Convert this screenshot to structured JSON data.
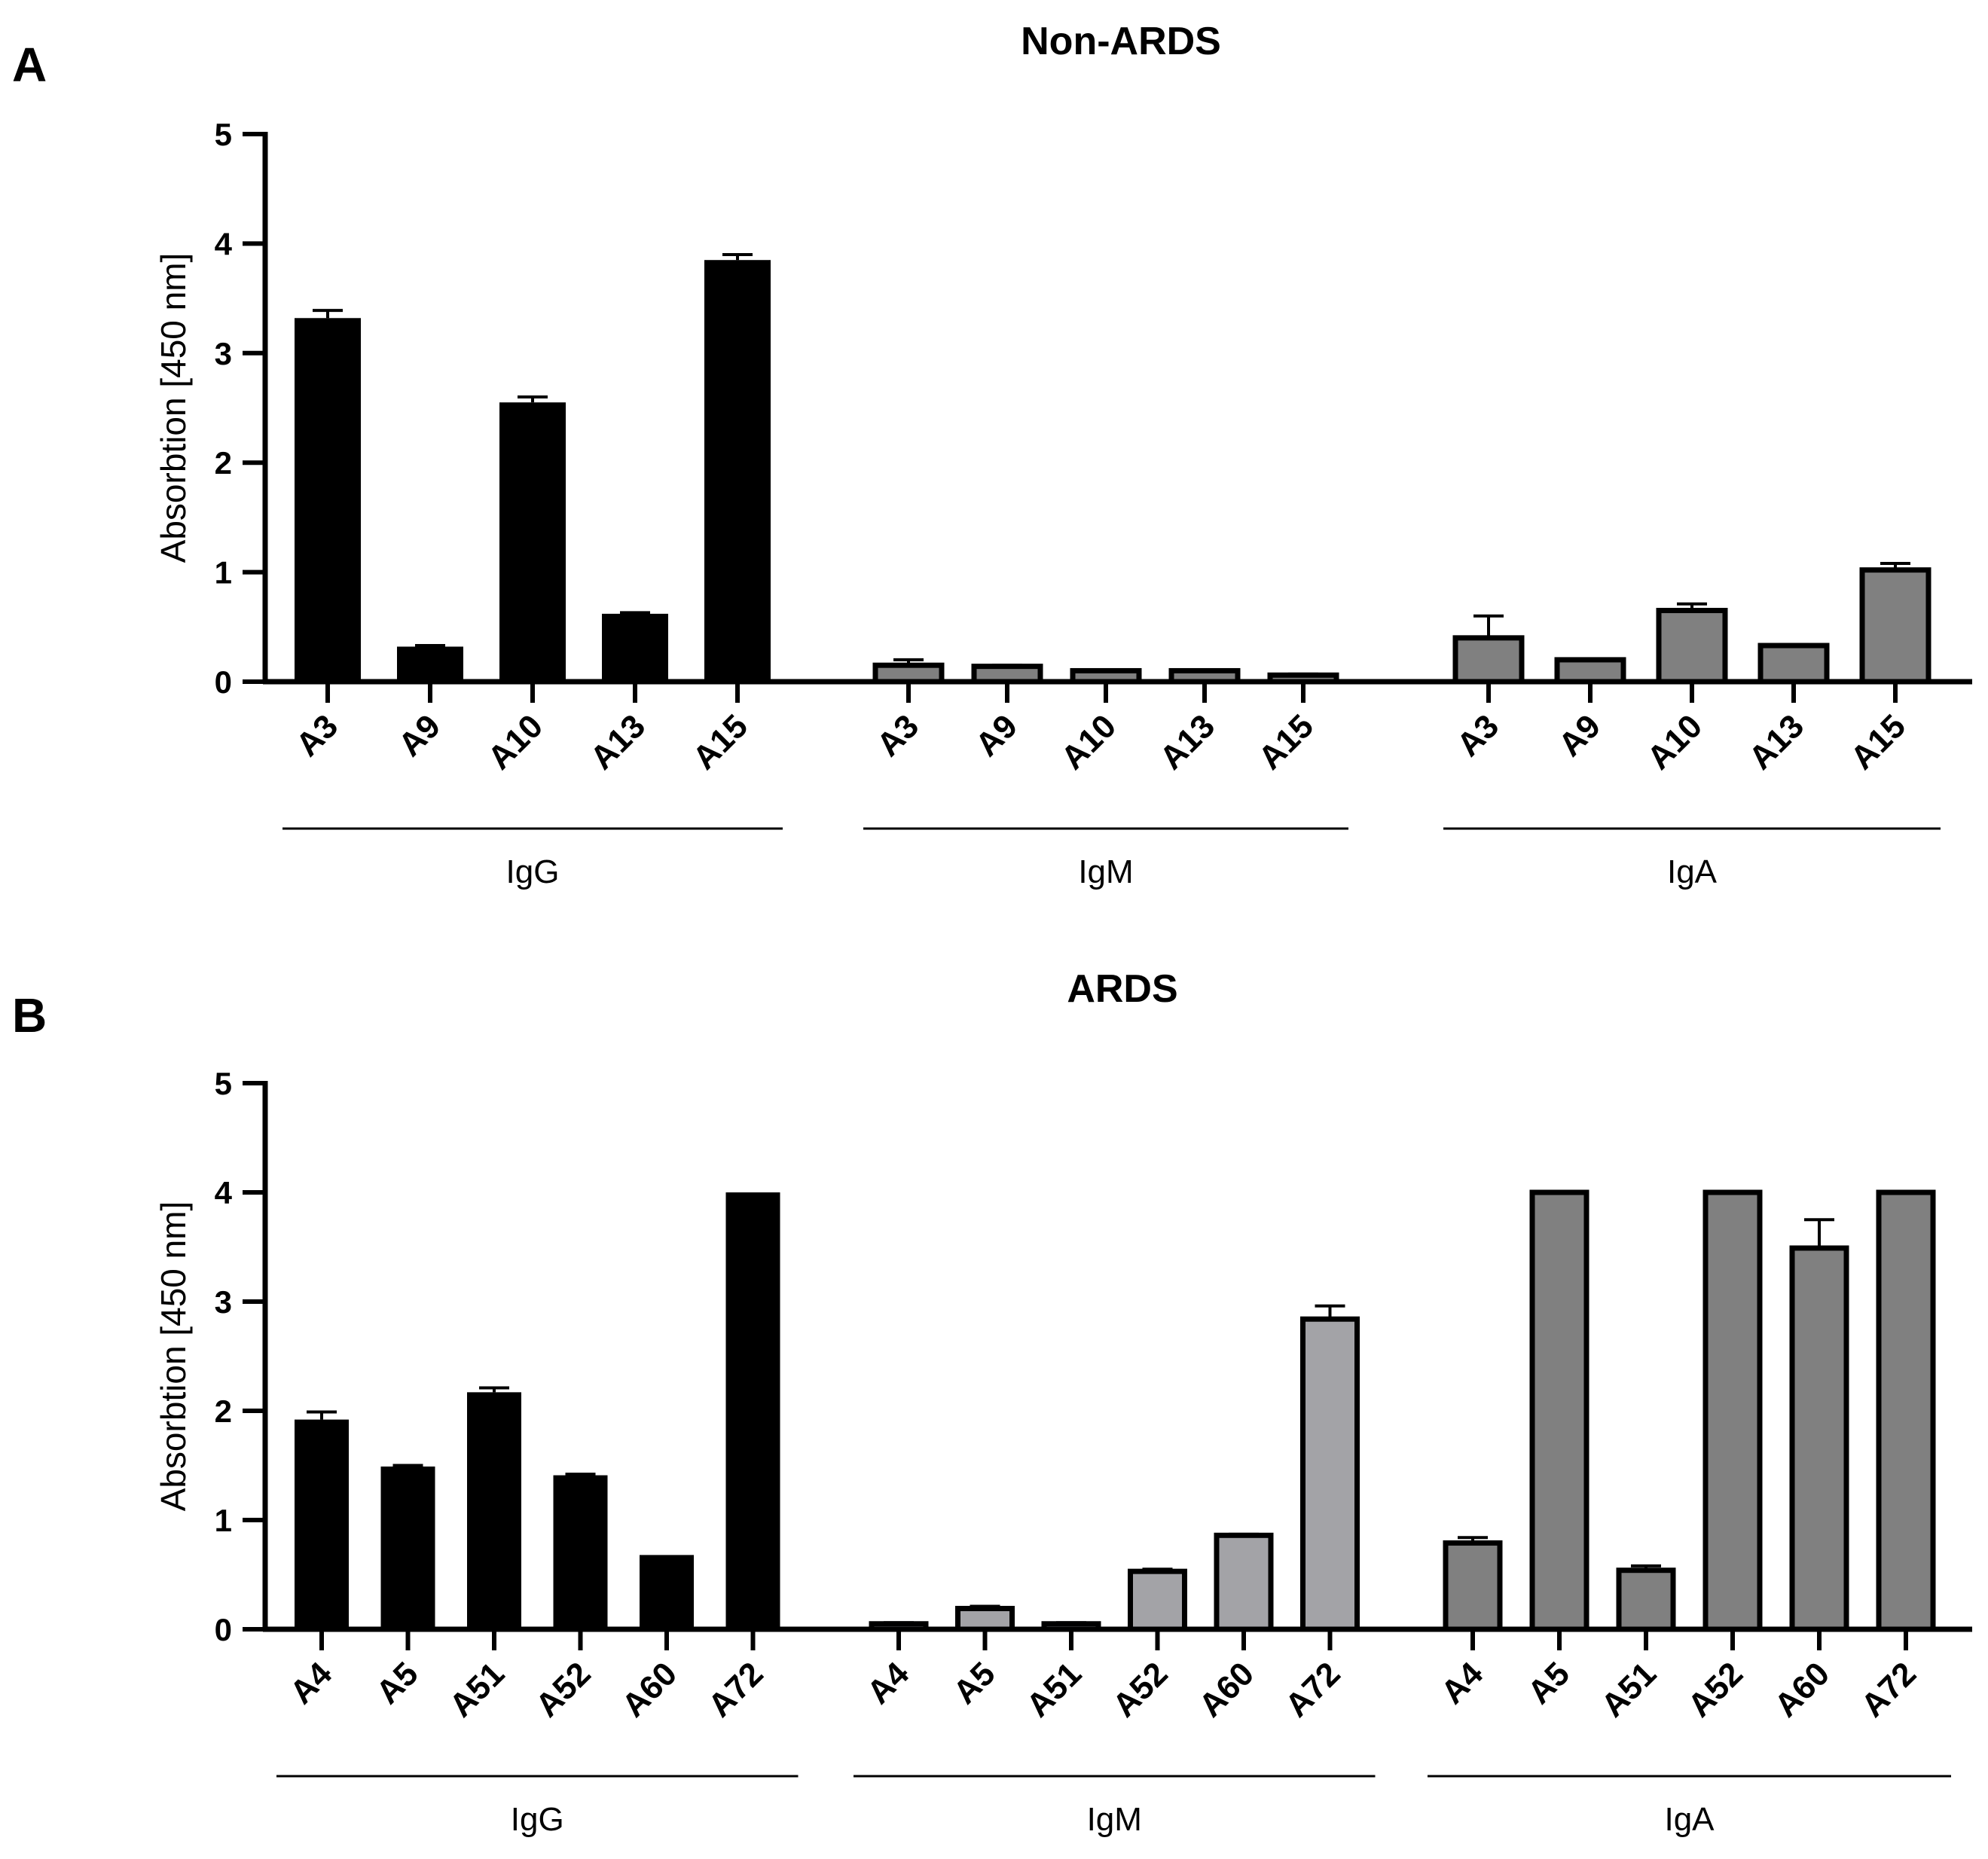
{
  "colors": {
    "igg": "#000000",
    "igm": "#a3a3a7",
    "iga": "#808080",
    "outline": "#000000"
  },
  "chart_data": [
    {
      "panel": "A",
      "type": "bar",
      "title": "Non-ARDS",
      "ylabel": "Absorbtion [450 nm]",
      "xlabel": "",
      "ylim": [
        0,
        5
      ],
      "yticks": [
        "0",
        "1",
        "2",
        "3",
        "4",
        "5"
      ],
      "groups": [
        {
          "name": "IgG",
          "color_key": "igg",
          "categories": [
            "A3",
            "A9",
            "A10",
            "A13",
            "A15"
          ],
          "values": [
            3.32,
            0.32,
            2.55,
            0.62,
            3.85
          ],
          "errors": [
            0.07,
            0.01,
            0.05,
            0.01,
            0.05
          ]
        },
        {
          "name": "IgM",
          "color_key": "iga",
          "categories": [
            "A3",
            "A9",
            "A10",
            "A13",
            "A15"
          ],
          "values": [
            0.15,
            0.14,
            0.1,
            0.1,
            0.06
          ],
          "errors": [
            0.05,
            0.01,
            0.01,
            0.01,
            0.01
          ]
        },
        {
          "name": "IgA",
          "color_key": "iga",
          "categories": [
            "A3",
            "A9",
            "A10",
            "A13",
            "A15"
          ],
          "values": [
            0.4,
            0.2,
            0.65,
            0.33,
            1.02
          ],
          "errors": [
            0.2,
            0.01,
            0.06,
            0.01,
            0.06
          ]
        }
      ]
    },
    {
      "panel": "B",
      "type": "bar",
      "title": "ARDS",
      "ylabel": "Absorbtion [450 nm]",
      "xlabel": "",
      "ylim": [
        0,
        5
      ],
      "yticks": [
        "0",
        "1",
        "2",
        "3",
        "4",
        "5"
      ],
      "groups": [
        {
          "name": "IgG",
          "color_key": "igg",
          "categories": [
            "A4",
            "A5",
            "A51",
            "A52",
            "A60",
            "A72"
          ],
          "values": [
            1.92,
            1.49,
            2.17,
            1.41,
            0.68,
            4.0
          ],
          "errors": [
            0.07,
            0.01,
            0.04,
            0.01,
            0.0,
            0.0
          ]
        },
        {
          "name": "IgM",
          "color_key": "igm",
          "categories": [
            "A4",
            "A5",
            "A51",
            "A52",
            "A60",
            "A72"
          ],
          "values": [
            0.05,
            0.19,
            0.05,
            0.53,
            0.86,
            2.84
          ],
          "errors": [
            0.01,
            0.02,
            0.01,
            0.02,
            0.01,
            0.12
          ]
        },
        {
          "name": "IgA",
          "color_key": "iga",
          "categories": [
            "A4",
            "A5",
            "A51",
            "A52",
            "A60",
            "A72"
          ],
          "values": [
            0.79,
            4.0,
            0.54,
            4.0,
            3.49,
            4.0
          ],
          "errors": [
            0.05,
            0.0,
            0.04,
            0.0,
            0.26,
            0.0
          ]
        }
      ]
    }
  ]
}
